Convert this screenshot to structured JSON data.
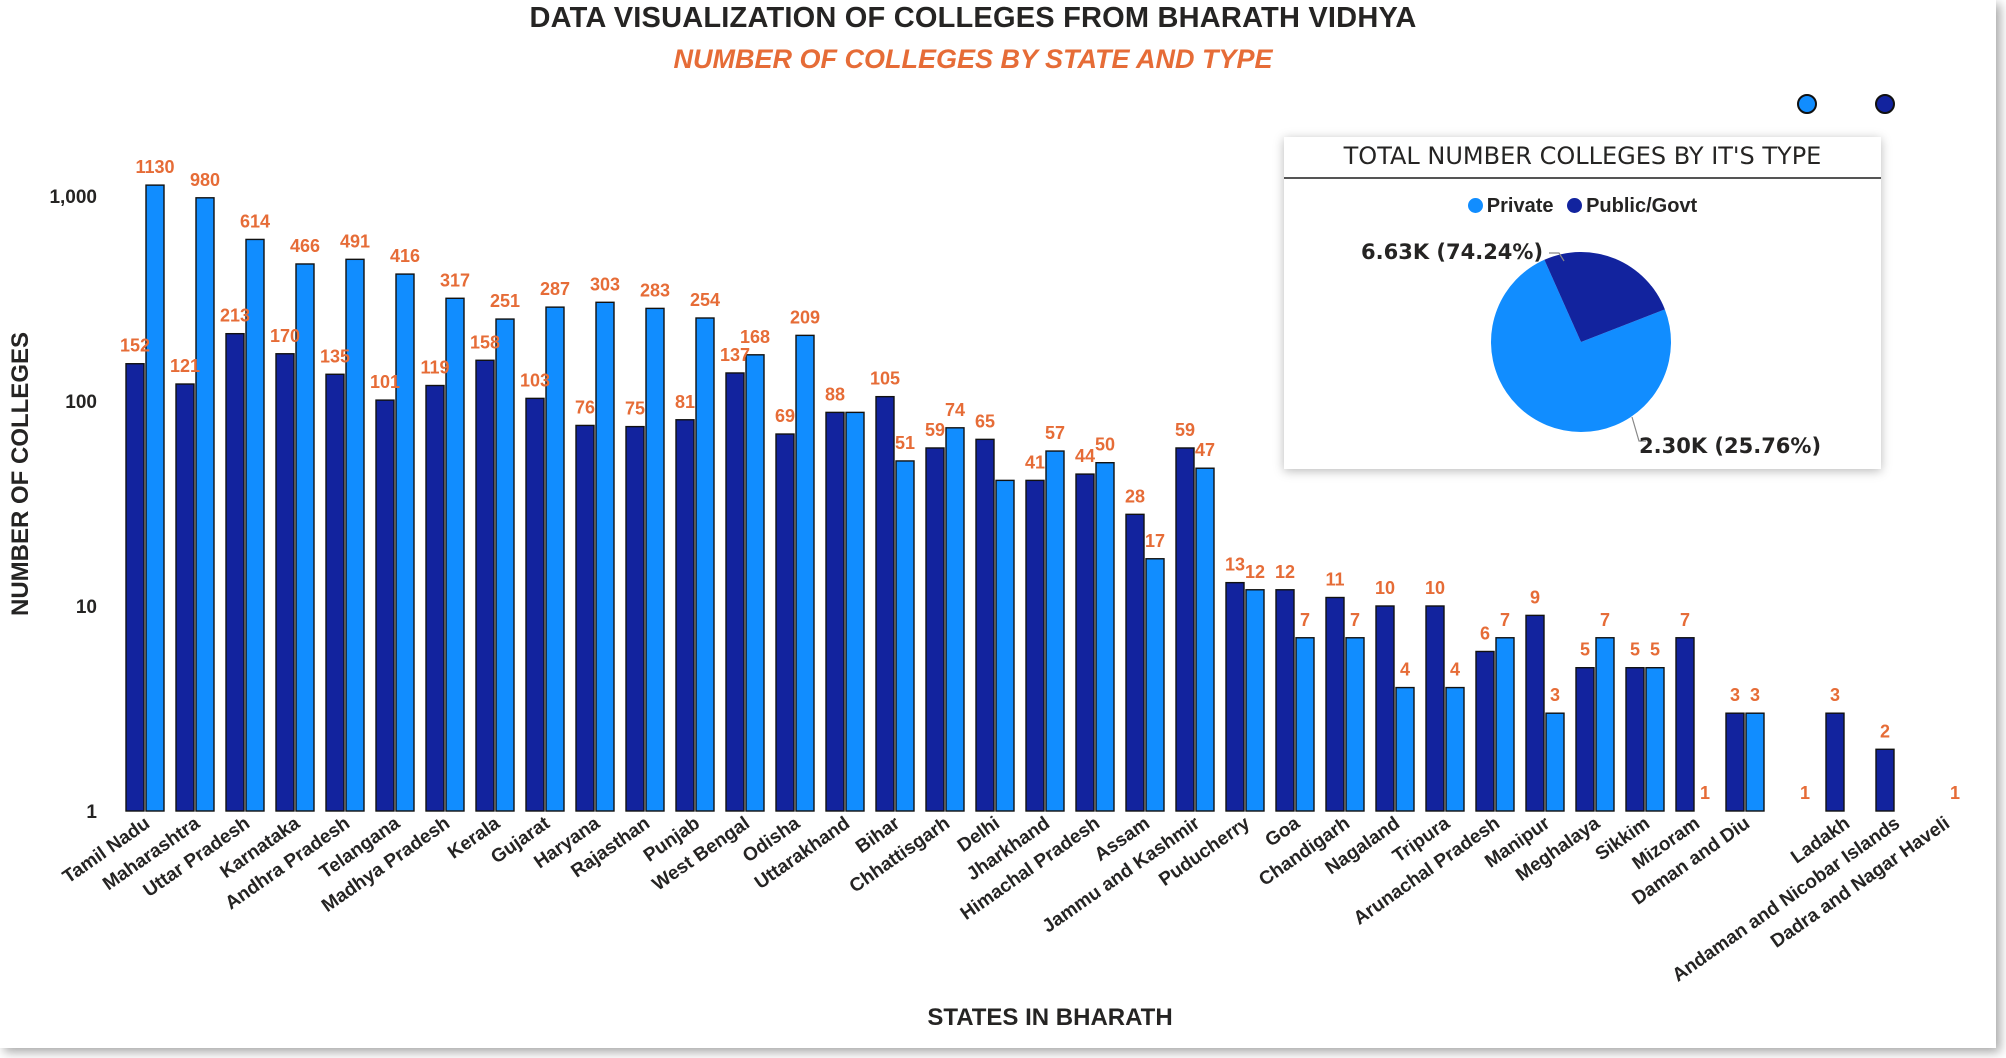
{
  "header": {
    "title": "DATA VISUALIZATION OF COLLEGES FROM BHARATH VIDHYA",
    "subtitle": "NUMBER OF COLLEGES BY STATE AND TYPE"
  },
  "colors": {
    "public_govt": "#12239e",
    "private": "#118dff",
    "data_label": "#e66c37",
    "title_accent": "#e66c37",
    "text": "#252423"
  },
  "chart_data": [
    {
      "type": "bar",
      "title": "NUMBER OF COLLEGES BY STATE AND TYPE",
      "xlabel": "STATES IN BHARATH",
      "ylabel": "NUMBER OF COLLEGES",
      "y_scale": "log",
      "ylim": [
        1,
        2000
      ],
      "y_ticks": [
        {
          "value": 1,
          "label": "1"
        },
        {
          "value": 10,
          "label": "10"
        },
        {
          "value": 100,
          "label": "100"
        },
        {
          "value": 1000,
          "label": "1,000"
        }
      ],
      "grid": false,
      "categories": [
        "Tamil Nadu",
        "Maharashtra",
        "Uttar Pradesh",
        "Karnataka",
        "Andhra Pradesh",
        "Telangana",
        "Madhya Pradesh",
        "Kerala",
        "Gujarat",
        "Haryana",
        "Rajasthan",
        "Punjab",
        "West Bengal",
        "Odisha",
        "Uttarakhand",
        "Bihar",
        "Chhattisgarh",
        "Delhi",
        "Jharkhand",
        "Himachal Pradesh",
        "Assam",
        "Jammu and Kashmir",
        "Puducherry",
        "Goa",
        "Chandigarh",
        "Nagaland",
        "Tripura",
        "Arunachal Pradesh",
        "Manipur",
        "Meghalaya",
        "Sikkim",
        "Mizoram",
        "Daman and Diu",
        "Ladakh",
        "Andaman and Nicobar Islands",
        "Dadra and Nagar Haveli"
      ],
      "category_slots": [
        0,
        1,
        2,
        3,
        4,
        5,
        6,
        7,
        8,
        9,
        10,
        11,
        12,
        13,
        14,
        15,
        16,
        17,
        18,
        19,
        20,
        21,
        22,
        23,
        24,
        25,
        26,
        27,
        28,
        29,
        30,
        31,
        32,
        34,
        35,
        36
      ],
      "extra_slots": [
        {
          "slot": 33,
          "public_govt": null,
          "private": 1,
          "private_label": "1"
        }
      ],
      "series": [
        {
          "name": "Public/Govt",
          "color": "#12239e",
          "values": [
            152,
            121,
            213,
            170,
            135,
            101,
            119,
            158,
            103,
            76,
            75,
            81,
            137,
            69,
            88,
            105,
            59,
            65,
            41,
            44,
            28,
            59,
            13,
            12,
            11,
            10,
            10,
            6,
            9,
            5,
            5,
            7,
            3,
            3,
            2,
            null
          ],
          "labels": [
            "152",
            "121",
            "213",
            "170",
            "135",
            "101",
            "119",
            "158",
            "103",
            "76",
            "75",
            "81",
            "137",
            "69",
            "88",
            "105",
            "59",
            "65",
            "41",
            "44",
            "28",
            "59",
            "13",
            "12",
            "11",
            "10",
            "10",
            "6",
            "9",
            "5",
            "5",
            "7",
            "3",
            "3",
            "2",
            ""
          ]
        },
        {
          "name": "Private",
          "color": "#118dff",
          "values": [
            1130,
            980,
            614,
            466,
            491,
            416,
            317,
            251,
            287,
            303,
            283,
            254,
            168,
            209,
            88,
            51,
            74,
            41,
            57,
            50,
            17,
            47,
            12,
            7,
            7,
            4,
            4,
            7,
            3,
            7,
            5,
            1,
            3,
            null,
            null,
            1
          ],
          "labels": [
            "1130",
            "980",
            "614",
            "466",
            "491",
            "416",
            "317",
            "251",
            "287",
            "303",
            "283",
            "254",
            "168",
            "209",
            "",
            "51",
            "74",
            "",
            "57",
            "50",
            "17",
            "47",
            "12",
            "7",
            "7",
            "4",
            "4",
            "7",
            "3",
            "7",
            "5",
            "1",
            "3",
            "",
            "",
            "1"
          ]
        }
      ],
      "bar_order": [
        "Public/Govt",
        "Private"
      ],
      "label_rules": "Public/Govt labels above left bar; Private labels above right bar"
    },
    {
      "type": "pie",
      "title": "TOTAL NUMBER COLLEGES BY IT'S TYPE",
      "legend": "top",
      "slices": [
        {
          "name": "Private",
          "value": 6630,
          "percent": 74.24,
          "label": "6.63K (74.24%)",
          "color": "#118dff"
        },
        {
          "name": "Public/Govt",
          "value": 2300,
          "percent": 25.76,
          "label": "2.30K (25.76%)",
          "color": "#12239e"
        }
      ]
    }
  ],
  "pie_card": {
    "title": "TOTAL NUMBER COLLEGES BY IT'S TYPE",
    "legend_private": "Private",
    "legend_public": "Public/Govt",
    "private_label": "6.63K (74.24%)",
    "public_label": "2.30K (25.76%)"
  },
  "slicer_dots": {
    "first_color": "#118dff",
    "second_color": "#12239e"
  }
}
